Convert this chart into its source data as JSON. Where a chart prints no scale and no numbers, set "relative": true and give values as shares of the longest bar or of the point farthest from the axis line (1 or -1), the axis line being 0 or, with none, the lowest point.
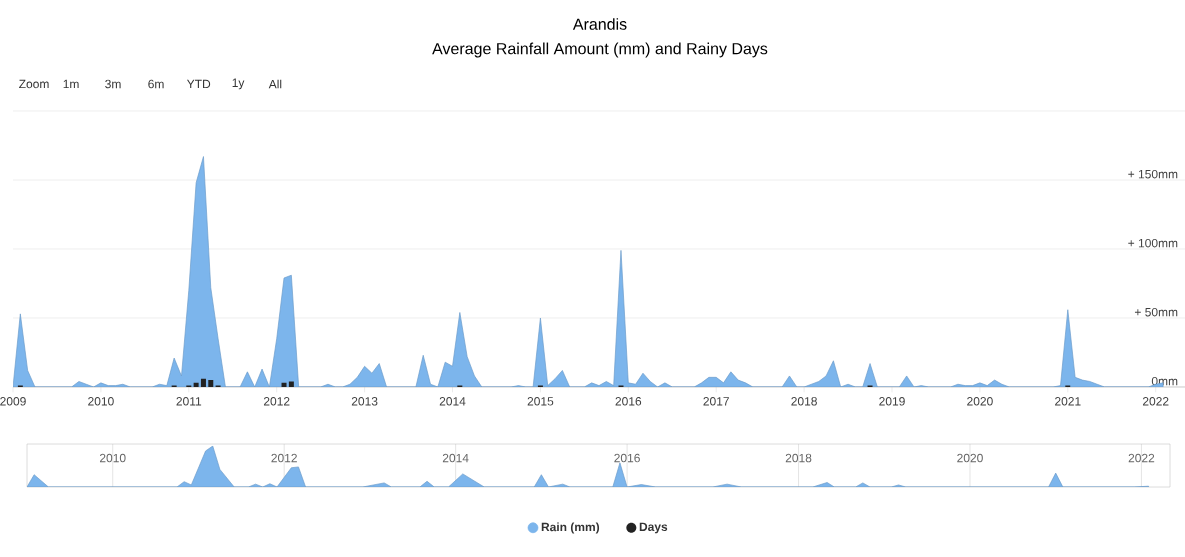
{
  "chart_data": [
    {
      "type": "area",
      "title": "Arandis",
      "subtitle": "Average Rainfall Amount (mm) and Rainy Days",
      "annotations": [
        "Zoom",
        "1m",
        "3m",
        "6m",
        "YTD",
        "1y",
        "All"
      ],
      "xlim": [
        "2009-01",
        "2022-05"
      ],
      "xticks": [
        "2009",
        "2010",
        "2011",
        "2012",
        "2013",
        "2014",
        "2015",
        "2016",
        "2017",
        "2018",
        "2019",
        "2020",
        "2021",
        "2022"
      ],
      "ylim": [
        0,
        200
      ],
      "yticks": [
        {
          "value": 0,
          "label": "0mm"
        },
        {
          "value": 50,
          "label": "+ 50mm"
        },
        {
          "value": 100,
          "label": "+ 100mm"
        },
        {
          "value": 150,
          "label": "+ 150mm"
        },
        {
          "value": 200,
          "label": null
        }
      ],
      "grid": "y",
      "legend": "bottom",
      "series": [
        {
          "name": "Rain (mm)",
          "color": "#7cb5ec",
          "x": [
            "2009-01",
            "2009-02",
            "2009-03",
            "2009-04",
            "2009-09",
            "2009-10",
            "2009-11",
            "2009-12",
            "2010-01",
            "2010-02",
            "2010-03",
            "2010-04",
            "2010-05",
            "2010-08",
            "2010-09",
            "2010-10",
            "2010-11",
            "2010-12",
            "2011-01",
            "2011-02",
            "2011-03",
            "2011-04",
            "2011-05",
            "2011-06",
            "2011-08",
            "2011-09",
            "2011-10",
            "2011-11",
            "2011-12",
            "2012-01",
            "2012-02",
            "2012-03",
            "2012-04",
            "2012-07",
            "2012-08",
            "2012-09",
            "2012-10",
            "2012-11",
            "2012-12",
            "2013-01",
            "2013-02",
            "2013-03",
            "2013-04",
            "2013-08",
            "2013-09",
            "2013-10",
            "2013-11",
            "2013-12",
            "2014-01",
            "2014-02",
            "2014-03",
            "2014-04",
            "2014-05",
            "2014-09",
            "2014-10",
            "2014-11",
            "2014-12",
            "2015-01",
            "2015-02",
            "2015-03",
            "2015-04",
            "2015-05",
            "2015-07",
            "2015-08",
            "2015-09",
            "2015-10",
            "2015-11",
            "2015-12",
            "2016-01",
            "2016-02",
            "2016-03",
            "2016-04",
            "2016-05",
            "2016-06",
            "2016-07",
            "2016-10",
            "2016-11",
            "2016-12",
            "2017-01",
            "2017-02",
            "2017-03",
            "2017-04",
            "2017-05",
            "2017-06",
            "2017-10",
            "2017-11",
            "2017-12",
            "2018-01",
            "2018-02",
            "2018-03",
            "2018-04",
            "2018-05",
            "2018-06",
            "2018-07",
            "2018-08",
            "2018-09",
            "2018-10",
            "2018-11",
            "2019-02",
            "2019-03",
            "2019-04",
            "2019-05",
            "2019-06",
            "2019-09",
            "2019-10",
            "2019-11",
            "2019-12",
            "2020-01",
            "2020-02",
            "2020-03",
            "2020-04",
            "2020-05",
            "2020-11",
            "2020-12",
            "2021-01",
            "2021-02",
            "2021-03",
            "2021-04",
            "2021-05",
            "2021-06",
            "2021-11",
            "2021-12",
            "2022-01",
            "2022-02"
          ],
          "values": [
            0,
            53,
            12,
            0,
            0,
            4,
            2,
            0,
            3,
            1,
            1,
            2,
            0,
            0,
            2,
            1,
            21,
            8,
            70,
            148,
            167,
            72,
            35,
            0,
            0,
            11,
            0,
            13,
            0,
            35,
            79,
            81,
            0,
            0,
            2,
            0,
            0,
            2,
            7,
            15,
            10,
            17,
            0,
            0,
            23,
            2,
            0,
            18,
            15,
            54,
            22,
            8,
            0,
            0,
            1,
            0,
            0,
            50,
            1,
            6,
            12,
            0,
            0,
            3,
            1,
            4,
            1,
            99,
            3,
            2,
            10,
            4,
            0,
            3,
            0,
            0,
            3,
            7,
            7,
            3,
            11,
            5,
            3,
            0,
            0,
            8,
            0,
            0,
            2,
            4,
            8,
            19,
            0,
            2,
            0,
            0,
            17,
            0,
            0,
            8,
            0,
            1,
            0,
            0,
            2,
            1,
            1,
            3,
            1,
            5,
            2,
            0,
            0,
            1,
            56,
            7,
            5,
            4,
            2,
            0,
            0,
            0,
            2,
            3
          ]
        },
        {
          "name": "Days",
          "type": "bar",
          "color": "#222222",
          "x": [
            "2009-02",
            "2010-11",
            "2011-01",
            "2011-02",
            "2011-03",
            "2011-04",
            "2011-05",
            "2012-02",
            "2012-03",
            "2014-02",
            "2015-01",
            "2015-12",
            "2018-10",
            "2021-01"
          ],
          "values": [
            1,
            1,
            1,
            3,
            6,
            5,
            1,
            3,
            4,
            1,
            1,
            1,
            1,
            1
          ]
        }
      ]
    },
    {
      "type": "area",
      "relative": true,
      "tick_labels": "x",
      "grid": "x",
      "xlim": [
        "2009-01",
        "2022-05"
      ],
      "xticks": [
        "2010",
        "2012",
        "2014",
        "2016",
        "2018",
        "2020",
        "2022"
      ],
      "series": [
        {
          "color": "#7cb5ec",
          "x": [
            "2009-01",
            "2009-02",
            "2009-04",
            "2010-10",
            "2010-11",
            "2010-12",
            "2011-02",
            "2011-03",
            "2011-04",
            "2011-06",
            "2011-08",
            "2011-09",
            "2011-10",
            "2011-11",
            "2011-12",
            "2012-02",
            "2012-03",
            "2012-04",
            "2012-12",
            "2013-03",
            "2013-04",
            "2013-08",
            "2013-09",
            "2013-10",
            "2013-12",
            "2014-02",
            "2014-05",
            "2014-12",
            "2015-01",
            "2015-02",
            "2015-04",
            "2015-05",
            "2015-11",
            "2015-12",
            "2016-01",
            "2016-03",
            "2016-05",
            "2017-01",
            "2017-03",
            "2017-05",
            "2018-03",
            "2018-05",
            "2018-06",
            "2018-09",
            "2018-10",
            "2018-11",
            "2019-02",
            "2019-03",
            "2019-04",
            "2020-12",
            "2021-01",
            "2021-02",
            "2021-12",
            "2022-02"
          ],
          "values": [
            0,
            0.3,
            0,
            0,
            0.13,
            0.05,
            0.88,
            1,
            0.43,
            0,
            0,
            0.07,
            0,
            0.08,
            0,
            0.47,
            0.49,
            0,
            0,
            0.1,
            0,
            0,
            0.14,
            0,
            0,
            0.32,
            0,
            0,
            0.3,
            0,
            0.07,
            0,
            0,
            0.59,
            0,
            0.06,
            0,
            0,
            0.07,
            0,
            0,
            0.11,
            0,
            0,
            0.1,
            0,
            0,
            0.05,
            0,
            0,
            0.34,
            0,
            0,
            0.02
          ]
        }
      ]
    }
  ]
}
